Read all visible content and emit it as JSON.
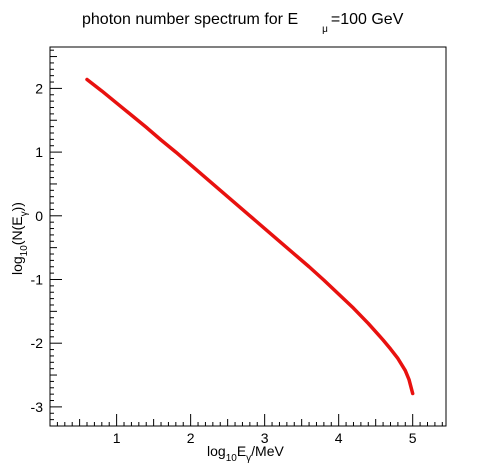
{
  "chart_data": {
    "type": "line",
    "title_main": "photon number spectrum for E",
    "title_sub": "μ",
    "title_tail": "=100 GeV",
    "xlabel_main": "log",
    "xlabel_sub": "10",
    "xlabel_mid": "E",
    "xlabel_sub2": "γ",
    "xlabel_tail": "/MeV",
    "ylabel_main": "log",
    "ylabel_sub": "10",
    "ylabel_mid": "(N(E",
    "ylabel_sub2": "γ",
    "ylabel_tail": "))",
    "xlim": [
      0.1,
      5.45
    ],
    "ylim": [
      -3.3,
      2.65
    ],
    "xticks": [
      "1",
      "2",
      "3",
      "4",
      "5"
    ],
    "yticks": [
      "-3",
      "-2",
      "-1",
      "0",
      "1",
      "2"
    ],
    "grid": false,
    "series_color": "#e8110f",
    "series": [
      {
        "x": [
          0.6,
          0.8,
          1.0,
          1.2,
          1.4,
          1.6,
          1.8,
          2.0,
          2.2,
          2.4,
          2.6,
          2.8,
          3.0,
          3.2,
          3.4,
          3.6,
          3.8,
          4.0,
          4.2,
          4.4,
          4.6,
          4.7,
          4.8,
          4.9,
          4.95,
          5.0
        ],
        "y": [
          2.14,
          1.96,
          1.77,
          1.58,
          1.39,
          1.19,
          1.0,
          0.8,
          0.6,
          0.4,
          0.2,
          0.0,
          -0.2,
          -0.4,
          -0.6,
          -0.8,
          -1.01,
          -1.23,
          -1.45,
          -1.69,
          -1.95,
          -2.09,
          -2.24,
          -2.43,
          -2.57,
          -2.79
        ]
      }
    ]
  }
}
